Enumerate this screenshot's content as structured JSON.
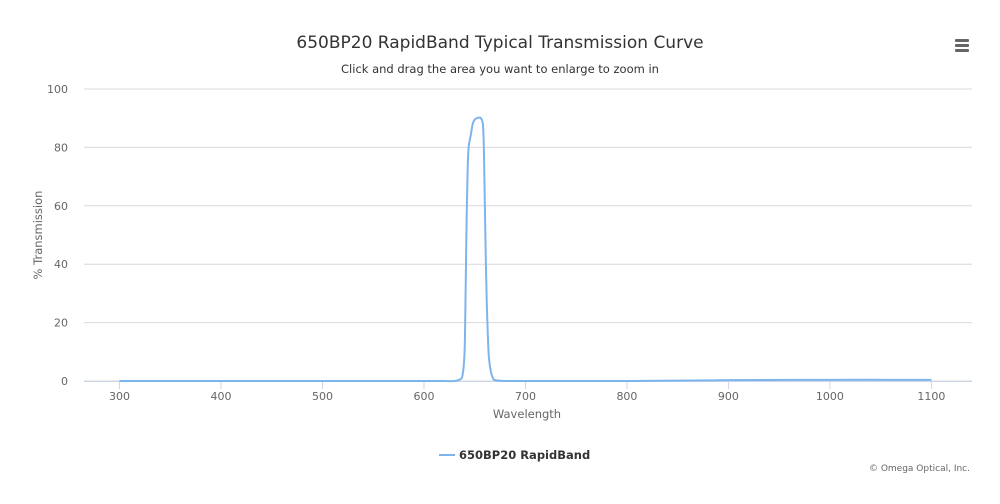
{
  "menu": {
    "icon": "hamburger-menu-icon"
  },
  "chart_data": {
    "type": "line",
    "title": "650BP20 RapidBand Typical Transmission Curve",
    "subtitle": "Click and drag the area you want to enlarge to zoom in",
    "xlabel": "Wavelength",
    "ylabel": "% Transmission",
    "xlim": [
      265,
      1140
    ],
    "ylim": [
      0,
      100
    ],
    "x_ticks": [
      300,
      400,
      500,
      600,
      700,
      800,
      900,
      1000,
      1100
    ],
    "y_ticks": [
      0,
      20,
      40,
      60,
      80,
      100
    ],
    "grid": {
      "horizontal": true,
      "vertical": false
    },
    "legend_position": "bottom-center",
    "credits": "© Omega Optical, Inc.",
    "colors": {
      "series": "#7cb5ec",
      "grid": "#d8d8d8",
      "axis": "#ccd6eb",
      "text": "#333333",
      "muted": "#666666"
    },
    "series": [
      {
        "name": "650BP20 RapidBand",
        "x": [
          300,
          400,
          500,
          600,
          620,
          630,
          635,
          638,
          640,
          641,
          642,
          643,
          644,
          646,
          648,
          650,
          652,
          654,
          656,
          658,
          659,
          660,
          661,
          662,
          663,
          664,
          666,
          668,
          670,
          680,
          700,
          800,
          880,
          900,
          1000,
          1100
        ],
        "y": [
          0,
          0,
          0,
          0,
          0,
          0,
          0.5,
          2,
          10,
          30,
          55,
          72,
          80,
          84,
          88,
          89.5,
          90,
          90.2,
          90,
          88,
          80,
          60,
          40,
          25,
          15,
          8,
          3,
          1,
          0.3,
          0,
          0,
          0,
          0.2,
          0.3,
          0.4,
          0.4
        ]
      }
    ]
  }
}
